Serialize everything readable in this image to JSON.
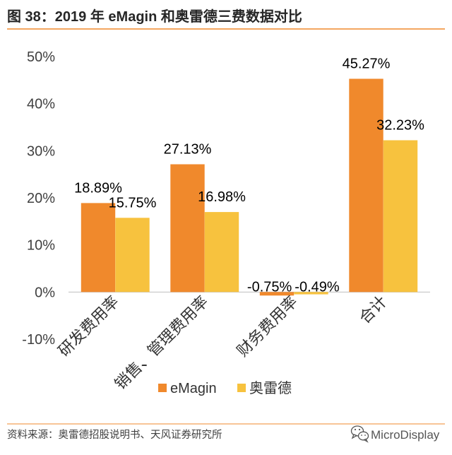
{
  "chart_data": {
    "type": "bar",
    "title": "图 38：2019 年 eMagin 和奥雷德三费数据对比",
    "categories": [
      "研发费用率",
      "销售、管理费用率",
      "财务费用率",
      "合计"
    ],
    "series": [
      {
        "name": "eMagin",
        "values": [
          18.89,
          27.13,
          -0.75,
          45.27
        ],
        "labels": [
          "18.89%",
          "27.13%",
          "-0.75%",
          "45.27%"
        ],
        "color": "#F0892C"
      },
      {
        "name": "奥雷德",
        "values": [
          15.75,
          16.98,
          -0.49,
          32.23
        ],
        "labels": [
          "15.75%",
          "16.98%",
          "-0.49%",
          "32.23%"
        ],
        "color": "#F7C23E"
      }
    ],
    "yaxis": {
      "ticks": [
        50,
        40,
        30,
        20,
        10,
        0,
        -10
      ],
      "tick_labels": [
        "50%",
        "40%",
        "30%",
        "20%",
        "10%",
        "0%",
        "-10%"
      ]
    },
    "ylim": [
      -10,
      50
    ],
    "grid": false,
    "legend": "bottom"
  },
  "footer": {
    "source": "资料来源：奥雷德招股说明书、天风证券研究所",
    "watermark": "MicroDisplay",
    "watermark_icon": "wechat-icon"
  },
  "colors": {
    "accent": "#F0892C",
    "axis": "#BFBFBF"
  }
}
